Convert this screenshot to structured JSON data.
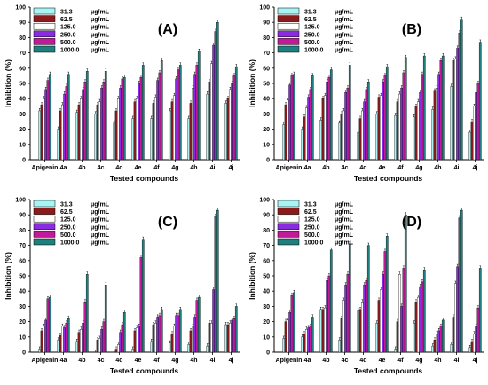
{
  "chart_data": {
    "type": "bar",
    "shared": {
      "categories": [
        "Apigenin",
        "4a",
        "4b",
        "4c",
        "4d",
        "4e",
        "4f",
        "4g",
        "4h",
        "4i",
        "4j"
      ],
      "xlabel": "Tested compounds",
      "ylabel": "Inhibition (%)",
      "ylim": [
        0,
        100
      ],
      "yticks": [
        0,
        10,
        20,
        30,
        40,
        50,
        60,
        70,
        80,
        90,
        100
      ],
      "unit": "μg/mL",
      "series_names": [
        "31.3",
        "62.5",
        "125.0",
        "250.0",
        "500.0",
        "1000.0"
      ],
      "colors": [
        "#a8f4f4",
        "#8b1a1a",
        "#ffffff",
        "#8a2be2",
        "#c2189a",
        "#1f7f7f"
      ],
      "legend_position": "top-left"
    },
    "panels": [
      {
        "label": "(A)",
        "series": [
          {
            "name": "31.3",
            "values": [
              32,
              20,
              31,
              30,
              24,
              27,
              27,
              32,
              27,
              43,
              37
            ]
          },
          {
            "name": "62.5",
            "values": [
              36,
              32,
              36,
              36,
              32,
              38,
              37,
              38,
              37,
              51,
              40
            ]
          },
          {
            "name": "125.0",
            "values": [
              40,
              36,
              40,
              38,
              40,
              40,
              41,
              42,
              47,
              63,
              46
            ]
          },
          {
            "name": "250.0",
            "values": [
              46,
              43,
              46,
              47,
              47,
              50,
              52,
              53,
              56,
              75,
              50
            ]
          },
          {
            "name": "500.0",
            "values": [
              52,
              48,
              51,
              51,
              53,
              54,
              57,
              59,
              62,
              84,
              55
            ]
          },
          {
            "name": "1000.0",
            "values": [
              56,
              56,
              58,
              58,
              54,
              62,
              65,
              62,
              71,
              90,
              61
            ]
          }
        ]
      },
      {
        "label": "(B)",
        "series": [
          {
            "name": "31.3",
            "values": [
              23,
              20,
              26,
              24,
              18,
              30,
              29,
              28,
              33,
              48,
              18
            ]
          },
          {
            "name": "62.5",
            "values": [
              36,
              28,
              40,
              30,
              27,
              41,
              38,
              35,
              45,
              65,
              25
            ]
          },
          {
            "name": "125.0",
            "values": [
              39,
              34,
              42,
              32,
              32,
              42,
              43,
              38,
              47,
              66,
              35
            ]
          },
          {
            "name": "250.0",
            "values": [
              49,
              41,
              51,
              44,
              38,
              51,
              47,
              44,
              56,
              73,
              44
            ]
          },
          {
            "name": "500.0",
            "values": [
              55,
              46,
              54,
              47,
              46,
              55,
              57,
              56,
              65,
              83,
              50
            ]
          },
          {
            "name": "1000.0",
            "values": [
              56,
              55,
              59,
              62,
              51,
              61,
              67,
              68,
              68,
              92,
              77
            ]
          }
        ]
      },
      {
        "label": "(C)",
        "series": [
          {
            "name": "31.3",
            "values": [
              2,
              8,
              7,
              0,
              0,
              2,
              7,
              6,
              5,
              4,
              18
            ]
          },
          {
            "name": "62.5",
            "values": [
              14,
              11,
              13,
              8,
              2,
              14,
              18,
              12,
              14,
              19,
              18
            ]
          },
          {
            "name": "125.0",
            "values": [
              17,
              17,
              15,
              9,
              5,
              16,
              19,
              17,
              17,
              19,
              19
            ]
          },
          {
            "name": "250.0",
            "values": [
              21,
              16,
              19,
              15,
              13,
              17,
              23,
              24,
              23,
              41,
              21
            ]
          },
          {
            "name": "500.0",
            "values": [
              35,
              19,
              33,
              20,
              18,
              62,
              24,
              24,
              34,
              89,
              22
            ]
          },
          {
            "name": "1000.0",
            "values": [
              36,
              22,
              51,
              44,
              26,
              74,
              28,
              28,
              36,
              93,
              30
            ]
          }
        ]
      },
      {
        "label": "(D)",
        "series": [
          {
            "name": "31.3",
            "values": [
              9,
              10,
              28,
              8,
              27,
              19,
              2,
              19,
              4,
              5,
              3
            ]
          },
          {
            "name": "62.5",
            "values": [
              20,
              12,
              28,
              22,
              28,
              34,
              20,
              33,
              8,
              23,
              7
            ]
          },
          {
            "name": "125.0",
            "values": [
              21,
              15,
              29,
              34,
              33,
              41,
              51,
              36,
              12,
              45,
              12
            ]
          },
          {
            "name": "250.0",
            "values": [
              26,
              16,
              47,
              44,
              44,
              51,
              30,
              43,
              14,
              56,
              17
            ]
          },
          {
            "name": "500.0",
            "values": [
              37,
              17,
              50,
              51,
              47,
              66,
              55,
              46,
              17,
              88,
              29
            ]
          },
          {
            "name": "1000.0",
            "values": [
              39,
              23,
              67,
              71,
              70,
              76,
              90,
              54,
              21,
              93,
              55
            ]
          }
        ]
      }
    ]
  }
}
